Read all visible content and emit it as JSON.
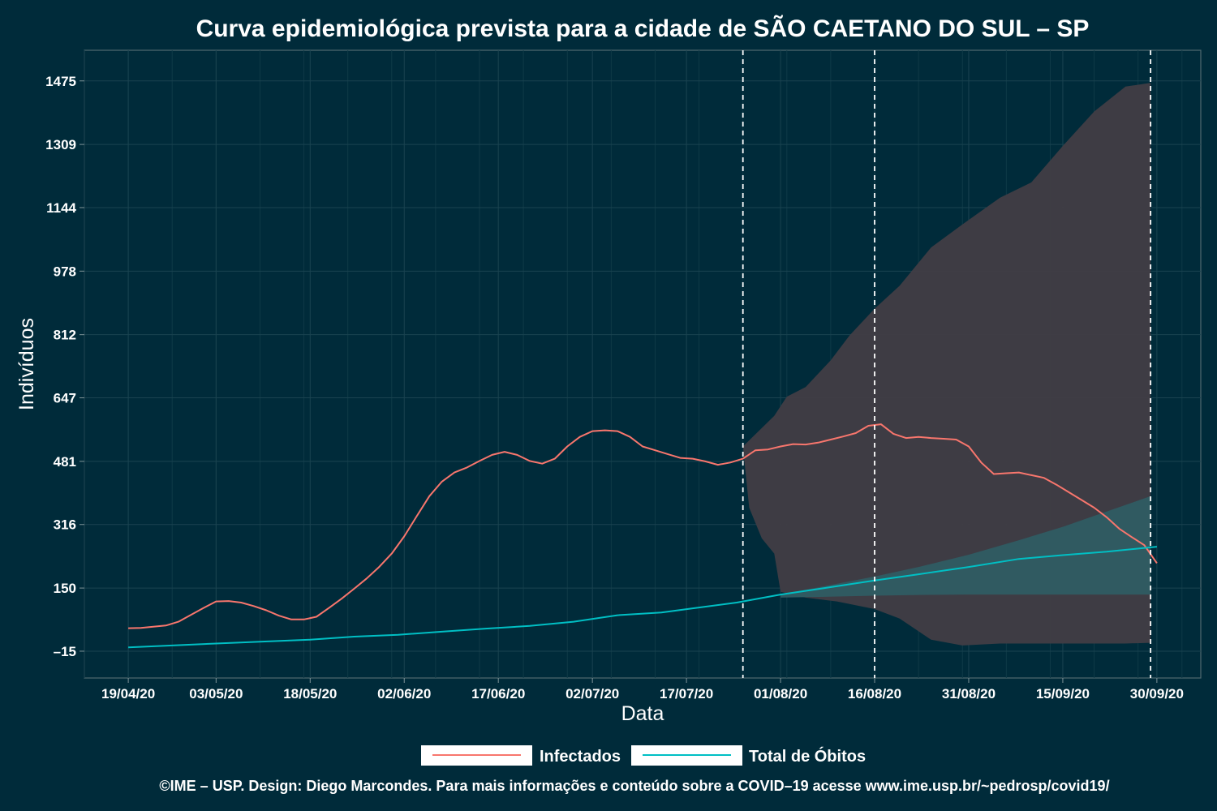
{
  "chart_data": {
    "type": "line",
    "title": "Curva epidemiológica prevista para a cidade de SÃO CAETANO DO SUL – SP",
    "xlabel": "Data",
    "ylabel": "Indivíduos",
    "caption": "©IME – USP. Design: Diego Marcondes. Para mais informações e conteúdo sobre a COVID–19 acesse www.ime.usp.br/~pedrosp/covid19/",
    "x_ticks": [
      "19/04/20",
      "03/05/20",
      "18/05/20",
      "02/06/20",
      "17/06/20",
      "02/07/20",
      "17/07/20",
      "01/08/20",
      "16/08/20",
      "31/08/20",
      "15/09/20",
      "30/09/20"
    ],
    "y_ticks": [
      "–15",
      "150",
      "316",
      "481",
      "647",
      "812",
      "978",
      "1144",
      "1309",
      "1475"
    ],
    "ylim": [
      -85,
      1555
    ],
    "xlim": [
      "12/04/20",
      "07/10/20"
    ],
    "vlines": [
      "26/07/20",
      "16/08/20",
      "29/09/20"
    ],
    "grid": true,
    "legend_position": "bottom",
    "colors": {
      "background": "#002b3a",
      "infectados": "#f8766d",
      "obitos": "#00bfc4",
      "band_infectados": "#413d44",
      "band_obitos": "#2f5c63",
      "vline": "#ffffff"
    },
    "series": [
      {
        "name": "Infectados",
        "color": "#f8766d",
        "points": [
          [
            "19/04/20",
            45
          ],
          [
            "21/04/20",
            46
          ],
          [
            "23/04/20",
            49
          ],
          [
            "25/04/20",
            52
          ],
          [
            "27/04/20",
            62
          ],
          [
            "29/04/20",
            80
          ],
          [
            "01/05/20",
            98
          ],
          [
            "03/05/20",
            115
          ],
          [
            "05/05/20",
            116
          ],
          [
            "07/05/20",
            112
          ],
          [
            "09/05/20",
            103
          ],
          [
            "11/05/20",
            92
          ],
          [
            "13/05/20",
            78
          ],
          [
            "15/05/20",
            68
          ],
          [
            "17/05/20",
            68
          ],
          [
            "19/05/20",
            75
          ],
          [
            "21/05/20",
            98
          ],
          [
            "23/05/20",
            122
          ],
          [
            "25/05/20",
            148
          ],
          [
            "27/05/20",
            175
          ],
          [
            "29/05/20",
            205
          ],
          [
            "31/05/20",
            240
          ],
          [
            "02/06/20",
            285
          ],
          [
            "04/06/20",
            338
          ],
          [
            "06/06/20",
            390
          ],
          [
            "08/06/20",
            428
          ],
          [
            "10/06/20",
            452
          ],
          [
            "12/06/20",
            465
          ],
          [
            "14/06/20",
            482
          ],
          [
            "16/06/20",
            498
          ],
          [
            "18/06/20",
            506
          ],
          [
            "20/06/20",
            498
          ],
          [
            "22/06/20",
            482
          ],
          [
            "24/06/20",
            475
          ],
          [
            "26/06/20",
            488
          ],
          [
            "28/06/20",
            520
          ],
          [
            "30/06/20",
            545
          ],
          [
            "02/07/20",
            560
          ],
          [
            "04/07/20",
            562
          ],
          [
            "06/07/20",
            560
          ],
          [
            "08/07/20",
            545
          ],
          [
            "10/07/20",
            520
          ],
          [
            "12/07/20",
            510
          ],
          [
            "14/07/20",
            500
          ],
          [
            "16/07/20",
            490
          ],
          [
            "18/07/20",
            488
          ],
          [
            "20/07/20",
            481
          ],
          [
            "22/07/20",
            472
          ],
          [
            "24/07/20",
            478
          ],
          [
            "26/07/20",
            488
          ],
          [
            "28/07/20",
            510
          ],
          [
            "30/07/20",
            512
          ],
          [
            "01/08/20",
            520
          ],
          [
            "03/08/20",
            526
          ],
          [
            "05/08/20",
            525
          ],
          [
            "07/08/20",
            530
          ],
          [
            "09/08/20",
            538
          ],
          [
            "11/08/20",
            546
          ],
          [
            "13/08/20",
            555
          ],
          [
            "15/08/20",
            574
          ],
          [
            "17/08/20",
            578
          ],
          [
            "19/08/20",
            553
          ],
          [
            "21/08/20",
            542
          ],
          [
            "23/08/20",
            545
          ],
          [
            "25/08/20",
            542
          ],
          [
            "27/08/20",
            540
          ],
          [
            "29/08/20",
            538
          ],
          [
            "31/08/20",
            520
          ],
          [
            "02/09/20",
            478
          ],
          [
            "04/09/20",
            448
          ],
          [
            "06/09/20",
            450
          ],
          [
            "08/09/20",
            452
          ],
          [
            "10/09/20",
            445
          ],
          [
            "12/09/20",
            438
          ],
          [
            "14/09/20",
            420
          ],
          [
            "16/09/20",
            400
          ],
          [
            "18/09/20",
            380
          ],
          [
            "20/09/20",
            360
          ],
          [
            "22/09/20",
            335
          ],
          [
            "24/09/20",
            305
          ],
          [
            "26/09/20",
            283
          ],
          [
            "28/09/20",
            262
          ],
          [
            "30/09/20",
            215
          ]
        ]
      },
      {
        "name": "Total de Óbitos",
        "color": "#00bfc4",
        "points": [
          [
            "19/04/20",
            -5
          ],
          [
            "26/04/20",
            0
          ],
          [
            "03/05/20",
            5
          ],
          [
            "10/05/20",
            10
          ],
          [
            "18/05/20",
            15
          ],
          [
            "25/05/20",
            23
          ],
          [
            "01/06/20",
            28
          ],
          [
            "08/06/20",
            36
          ],
          [
            "15/06/20",
            44
          ],
          [
            "22/06/20",
            51
          ],
          [
            "29/06/20",
            62
          ],
          [
            "06/07/20",
            79
          ],
          [
            "13/07/20",
            86
          ],
          [
            "18/07/20",
            97
          ],
          [
            "25/07/20",
            112
          ],
          [
            "01/08/20",
            133
          ],
          [
            "08/08/20",
            150
          ],
          [
            "16/08/20",
            170
          ],
          [
            "23/08/20",
            186
          ],
          [
            "31/08/20",
            205
          ],
          [
            "08/09/20",
            226
          ],
          [
            "15/09/20",
            236
          ],
          [
            "22/09/20",
            245
          ],
          [
            "30/09/20",
            258
          ]
        ]
      }
    ],
    "bands": [
      {
        "series": "Infectados",
        "color": "#413d44",
        "upper": [
          [
            "26/07/20",
            520
          ],
          [
            "31/07/20",
            600
          ],
          [
            "02/08/20",
            650
          ],
          [
            "05/08/20",
            675
          ],
          [
            "09/08/20",
            745
          ],
          [
            "12/08/20",
            810
          ],
          [
            "16/08/20",
            880
          ],
          [
            "20/08/20",
            940
          ],
          [
            "25/08/20",
            1040
          ],
          [
            "30/08/20",
            1100
          ],
          [
            "05/09/20",
            1170
          ],
          [
            "10/09/20",
            1210
          ],
          [
            "15/09/20",
            1305
          ],
          [
            "20/09/20",
            1395
          ],
          [
            "25/09/20",
            1460
          ],
          [
            "29/09/20",
            1470
          ]
        ],
        "lower": [
          [
            "26/07/20",
            520
          ],
          [
            "27/07/20",
            360
          ],
          [
            "29/07/20",
            280
          ],
          [
            "31/07/20",
            240
          ],
          [
            "01/08/20",
            140
          ],
          [
            "05/08/20",
            125
          ],
          [
            "10/08/20",
            115
          ],
          [
            "16/08/20",
            95
          ],
          [
            "20/08/20",
            70
          ],
          [
            "25/08/20",
            15
          ],
          [
            "30/08/20",
            0
          ],
          [
            "05/09/20",
            5
          ],
          [
            "15/09/20",
            5
          ],
          [
            "25/09/20",
            5
          ],
          [
            "29/09/20",
            7
          ]
        ]
      },
      {
        "series": "Total de Óbitos",
        "color": "#2f5c63",
        "upper": [
          [
            "01/08/20",
            133
          ],
          [
            "08/08/20",
            155
          ],
          [
            "16/08/20",
            180
          ],
          [
            "23/08/20",
            205
          ],
          [
            "31/08/20",
            237
          ],
          [
            "08/09/20",
            275
          ],
          [
            "15/09/20",
            310
          ],
          [
            "22/09/20",
            350
          ],
          [
            "29/09/20",
            390
          ]
        ],
        "lower": [
          [
            "01/08/20",
            125
          ],
          [
            "08/08/20",
            127
          ],
          [
            "16/08/20",
            130
          ],
          [
            "23/08/20",
            132
          ],
          [
            "31/08/20",
            133
          ],
          [
            "08/09/20",
            133
          ],
          [
            "15/09/20",
            133
          ],
          [
            "22/09/20",
            133
          ],
          [
            "29/09/20",
            133
          ]
        ]
      }
    ]
  }
}
